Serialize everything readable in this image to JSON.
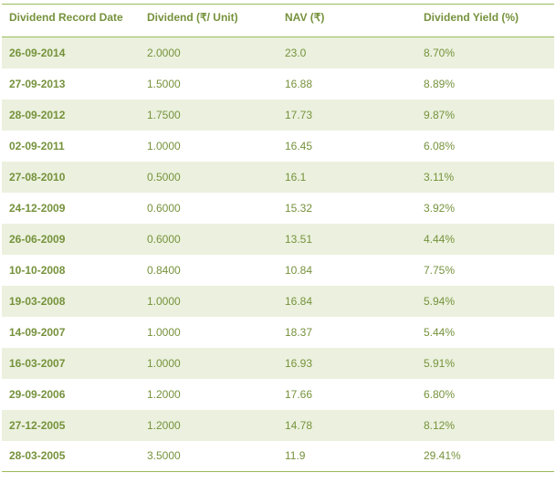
{
  "table": {
    "headers": [
      "Dividend Record Date",
      "Dividend (₹/ Unit)",
      "NAV (₹)",
      "Dividend Yield (%)"
    ],
    "rows": [
      [
        "26-09-2014",
        "2.0000",
        "23.0",
        "8.70%"
      ],
      [
        "27-09-2013",
        "1.5000",
        "16.88",
        "8.89%"
      ],
      [
        "28-09-2012",
        "1.7500",
        "17.73",
        "9.87%"
      ],
      [
        "02-09-2011",
        "1.0000",
        "16.45",
        "6.08%"
      ],
      [
        "27-08-2010",
        "0.5000",
        "16.1",
        "3.11%"
      ],
      [
        "24-12-2009",
        "0.6000",
        "15.32",
        "3.92%"
      ],
      [
        "26-06-2009",
        "0.6000",
        "13.51",
        "4.44%"
      ],
      [
        "10-10-2008",
        "0.8400",
        "10.84",
        "7.75%"
      ],
      [
        "19-03-2008",
        "1.0000",
        "16.84",
        "5.94%"
      ],
      [
        "14-09-2007",
        "1.0000",
        "18.37",
        "5.44%"
      ],
      [
        "16-03-2007",
        "1.0000",
        "16.93",
        "5.91%"
      ],
      [
        "29-09-2006",
        "1.2000",
        "17.66",
        "6.80%"
      ],
      [
        "27-12-2005",
        "1.2000",
        "14.78",
        "8.12%"
      ],
      [
        "28-03-2005",
        "3.5000",
        "11.9",
        "29.41%"
      ]
    ]
  }
}
